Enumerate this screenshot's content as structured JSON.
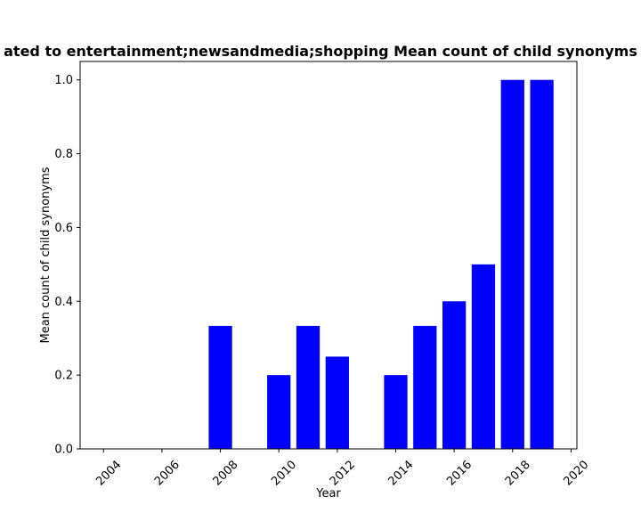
{
  "chart_data": {
    "type": "bar",
    "title": "Mean count of child synonyms related to entertainment;newsandmedia;shopping Mean count of child synonyms",
    "title_visible": "ated to entertainment;newsandmedia;shopping Mean count of child synonyms",
    "xlabel": "Year",
    "ylabel": "Mean count of child synonyms",
    "bar_color": "#0000ff",
    "x": [
      2008,
      2010,
      2011,
      2012,
      2014,
      2015,
      2016,
      2017,
      2018,
      2019
    ],
    "values": [
      0.3333,
      0.2,
      0.3333,
      0.25,
      0.2,
      0.3333,
      0.4,
      0.5,
      1.0,
      1.0
    ],
    "xlim": [
      2003.2,
      2020.2
    ],
    "ylim": [
      0,
      1.05
    ],
    "xticks": [
      2004,
      2006,
      2008,
      2010,
      2012,
      2014,
      2016,
      2018,
      2020
    ],
    "xtick_labels": [
      "2004",
      "2006",
      "2008",
      "2010",
      "2012",
      "2014",
      "2016",
      "2018",
      "2020"
    ],
    "yticks": [
      0.0,
      0.2,
      0.4,
      0.6,
      0.8,
      1.0
    ],
    "ytick_labels": [
      "0.0",
      "0.2",
      "0.4",
      "0.6",
      "0.8",
      "1.0"
    ],
    "grid": false,
    "legend": "none"
  }
}
